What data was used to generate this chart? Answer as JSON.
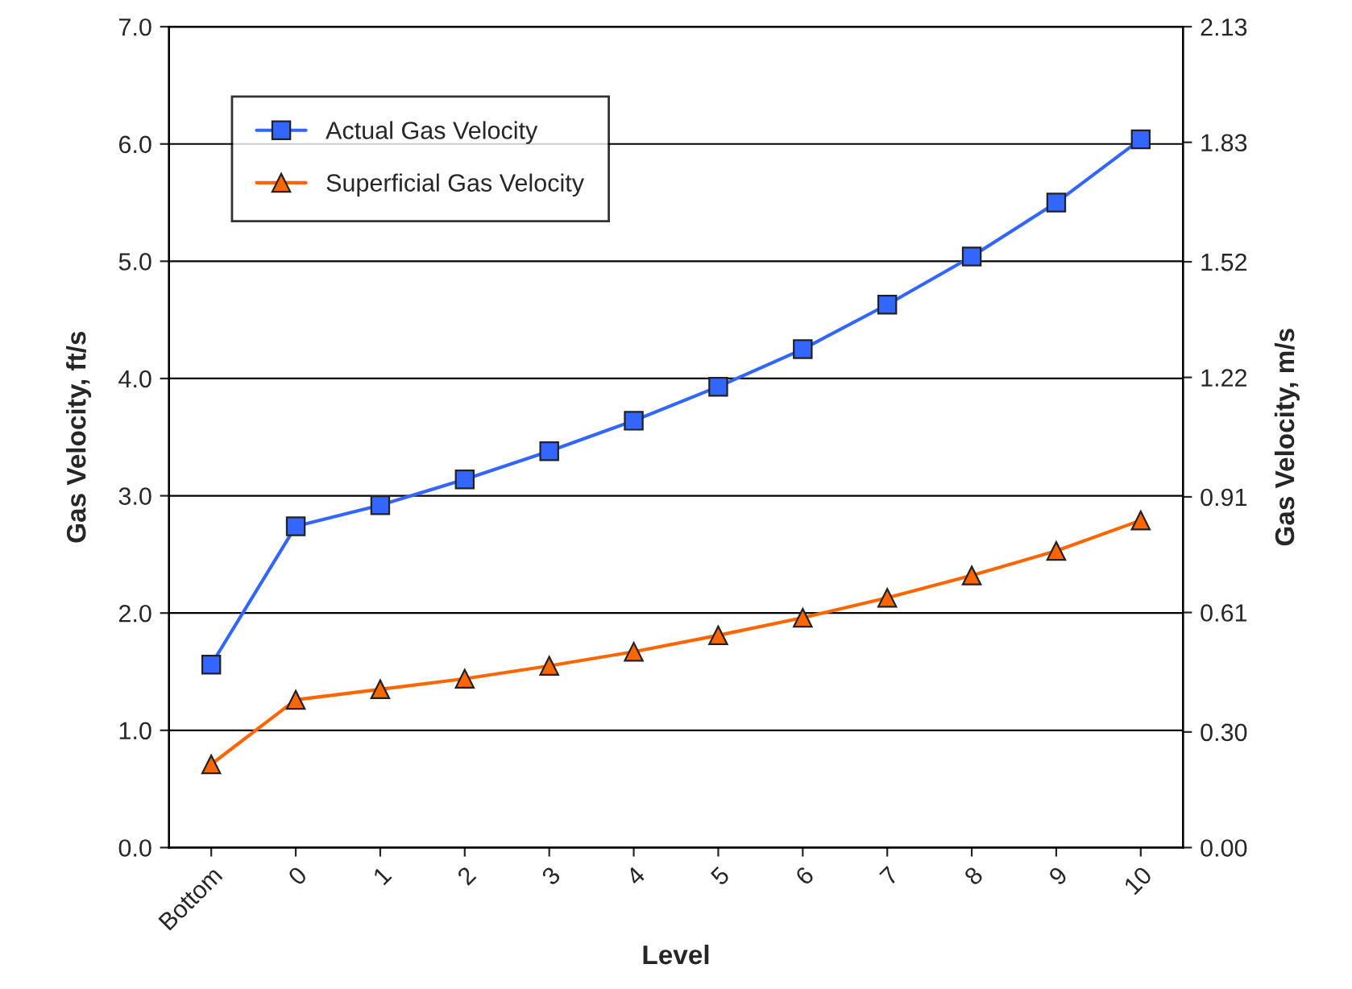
{
  "chart_data": {
    "type": "line",
    "xlabel": "Level",
    "ylabel": "Gas Velocity, ft/s",
    "y2label": "Gas Velocity, m/s",
    "categories": [
      "Bottom",
      "0",
      "1",
      "2",
      "3",
      "4",
      "5",
      "6",
      "7",
      "8",
      "9",
      "10"
    ],
    "series": [
      {
        "name": "Actual Gas Velocity",
        "color": "#3366ff",
        "marker": "square",
        "values": [
          1.56,
          2.74,
          2.92,
          3.14,
          3.38,
          3.64,
          3.93,
          4.25,
          4.63,
          5.04,
          5.5,
          6.04
        ]
      },
      {
        "name": "Superficial Gas Velocity",
        "color": "#ff6600",
        "marker": "triangle",
        "values": [
          0.71,
          1.26,
          1.35,
          1.44,
          1.55,
          1.67,
          1.81,
          1.96,
          2.13,
          2.32,
          2.53,
          2.79
        ]
      }
    ],
    "ylim": [
      0,
      7
    ],
    "yticks": [
      {
        "value": 0,
        "label": "0.0"
      },
      {
        "value": 1,
        "label": "1.0"
      },
      {
        "value": 2,
        "label": "2.0"
      },
      {
        "value": 3,
        "label": "3.0"
      },
      {
        "value": 4,
        "label": "4.0"
      },
      {
        "value": 5,
        "label": "5.0"
      },
      {
        "value": 6,
        "label": "6.0"
      },
      {
        "value": 7,
        "label": "7.0"
      }
    ],
    "y2lim": [
      0,
      2.13
    ],
    "y2ticks": [
      {
        "value": 0,
        "label": "0.00"
      },
      {
        "value": 0.3,
        "label": "0.30"
      },
      {
        "value": 0.61,
        "label": "0.61"
      },
      {
        "value": 0.91,
        "label": "0.91"
      },
      {
        "value": 1.22,
        "label": "1.22"
      },
      {
        "value": 1.52,
        "label": "1.52"
      },
      {
        "value": 1.83,
        "label": "1.83"
      },
      {
        "value": 2.13,
        "label": "2.13"
      }
    ],
    "grid": "y",
    "legend": "top left",
    "line_style": "solid"
  }
}
